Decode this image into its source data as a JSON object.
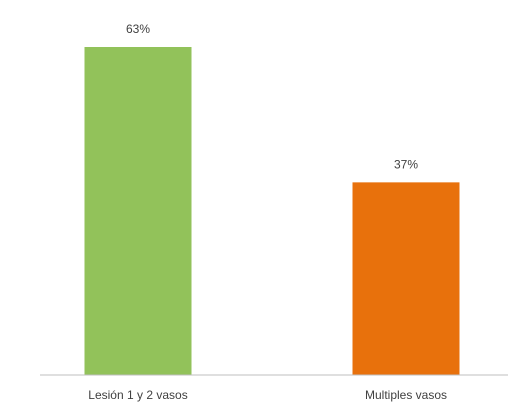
{
  "chart_data": {
    "type": "bar",
    "categories": [
      "Lesión 1 y 2 vasos",
      "Multiples vasos"
    ],
    "values": [
      63,
      37
    ],
    "data_labels": [
      "63%",
      "37%"
    ],
    "colors": [
      "#92c25a",
      "#e8710c"
    ],
    "ylim": [
      0,
      63
    ],
    "grid": false,
    "legend": "none"
  }
}
